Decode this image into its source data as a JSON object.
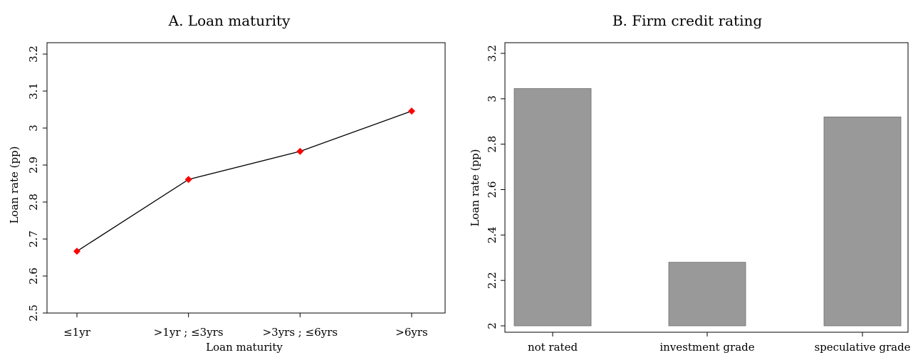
{
  "chart_data": [
    {
      "type": "line",
      "title": "A. Loan maturity",
      "xlabel": "Loan maturity",
      "ylabel": "Loan rate (pp)",
      "categories": [
        "≤1yr",
        ">1yr ; ≤3yrs",
        ">3yrs ; ≤6yrs",
        ">6yrs"
      ],
      "x": [
        1,
        2,
        3,
        4
      ],
      "values": [
        2.667,
        2.861,
        2.937,
        3.046
      ],
      "ylim": [
        2.5,
        3.2
      ],
      "yticks": [
        "2.5",
        "2.6",
        "2.7",
        "2.8",
        "2.9",
        "3",
        "3.1",
        "3.2"
      ],
      "grid": false,
      "line_color": "#000000",
      "marker_color": "#ff0000"
    },
    {
      "type": "bar",
      "title": "B. Firm credit rating",
      "xlabel": "",
      "ylabel": "Loan rate (pp)",
      "categories": [
        "not rated",
        "investment grade",
        "speculative grade"
      ],
      "values": [
        3.045,
        2.28,
        2.92
      ],
      "ylim": [
        2.0,
        3.2
      ],
      "yticks": [
        "2",
        "2.2",
        "2.4",
        "2.6",
        "2.8",
        "3",
        "3.2"
      ],
      "grid": false,
      "bar_color": "#999999"
    }
  ]
}
